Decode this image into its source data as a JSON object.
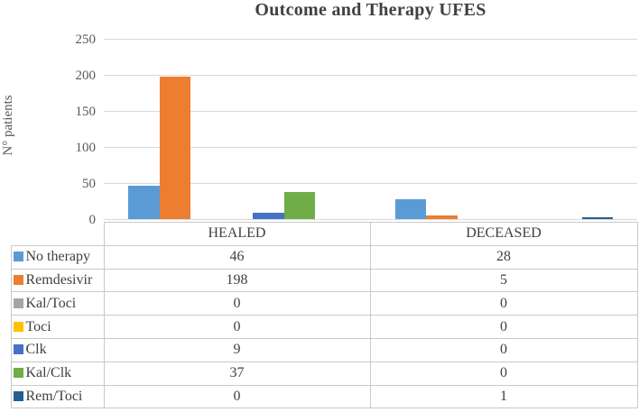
{
  "chart_data": {
    "type": "bar",
    "title": "Outcome and Therapy UFES",
    "ylabel": "N° patients",
    "xlabel": "",
    "categories": [
      "HEALED",
      "DECEASED"
    ],
    "series": [
      {
        "name": "No therapy",
        "color": "#5B9BD5",
        "values": [
          46,
          28
        ]
      },
      {
        "name": "Remdesivir",
        "color": "#ED7D31",
        "values": [
          198,
          5
        ]
      },
      {
        "name": "Kal/Toci",
        "color": "#A5A5A5",
        "values": [
          0,
          0
        ]
      },
      {
        "name": "Toci",
        "color": "#FFC000",
        "values": [
          0,
          0
        ]
      },
      {
        "name": "Clk",
        "color": "#4472C4",
        "values": [
          9,
          0
        ]
      },
      {
        "name": "Kal/Clk",
        "color": "#70AD47",
        "values": [
          37,
          0
        ]
      },
      {
        "name": "Rem/Toci",
        "color": "#255E91",
        "values": [
          0,
          1
        ]
      }
    ],
    "ylim": [
      0,
      250
    ],
    "yticks": [
      0,
      50,
      100,
      150,
      200,
      250
    ],
    "grid": true,
    "legend_position": "data-table-below-chart",
    "colors": {
      "background": "#FFFFFF",
      "gridline": "#D9D9D9",
      "table_border": "#C9C9C9",
      "title_text": "#404040",
      "axis_text": "#595959",
      "table_text": "#404040"
    }
  }
}
